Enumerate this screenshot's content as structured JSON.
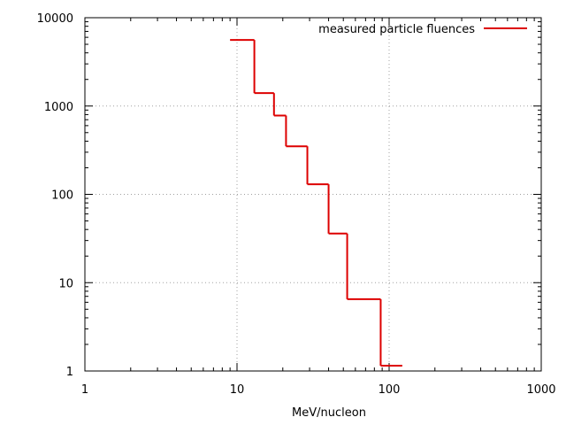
{
  "chart_data": {
    "type": "line",
    "style": "step",
    "title": "",
    "xlabel": "MeV/nucleon",
    "ylabel": "",
    "xscale": "log",
    "yscale": "log",
    "xlim": [
      1,
      1000
    ],
    "ylim": [
      1,
      10000
    ],
    "grid": true,
    "legend_position": "top-right",
    "x_ticks": [
      {
        "value": 1,
        "label": "1"
      },
      {
        "value": 10,
        "label": "10"
      },
      {
        "value": 100,
        "label": "100"
      },
      {
        "value": 1000,
        "label": "1000"
      }
    ],
    "y_ticks": [
      {
        "value": 1,
        "label": "1"
      },
      {
        "value": 10,
        "label": "10"
      },
      {
        "value": 100,
        "label": "100"
      },
      {
        "value": 1000,
        "label": "1000"
      },
      {
        "value": 10000,
        "label": "10000"
      }
    ],
    "series": [
      {
        "name": "measured particle fluences",
        "color": "#dd0000",
        "bins": [
          {
            "x_low": 9,
            "x_high": 13,
            "y": 5600
          },
          {
            "x_low": 13,
            "x_high": 17.5,
            "y": 1400
          },
          {
            "x_low": 17.5,
            "x_high": 21,
            "y": 780
          },
          {
            "x_low": 21,
            "x_high": 29,
            "y": 350
          },
          {
            "x_low": 29,
            "x_high": 40,
            "y": 130
          },
          {
            "x_low": 40,
            "x_high": 53,
            "y": 36
          },
          {
            "x_low": 53,
            "x_high": 88,
            "y": 6.5
          },
          {
            "x_low": 88,
            "x_high": 122,
            "y": 1.15
          }
        ]
      }
    ]
  }
}
